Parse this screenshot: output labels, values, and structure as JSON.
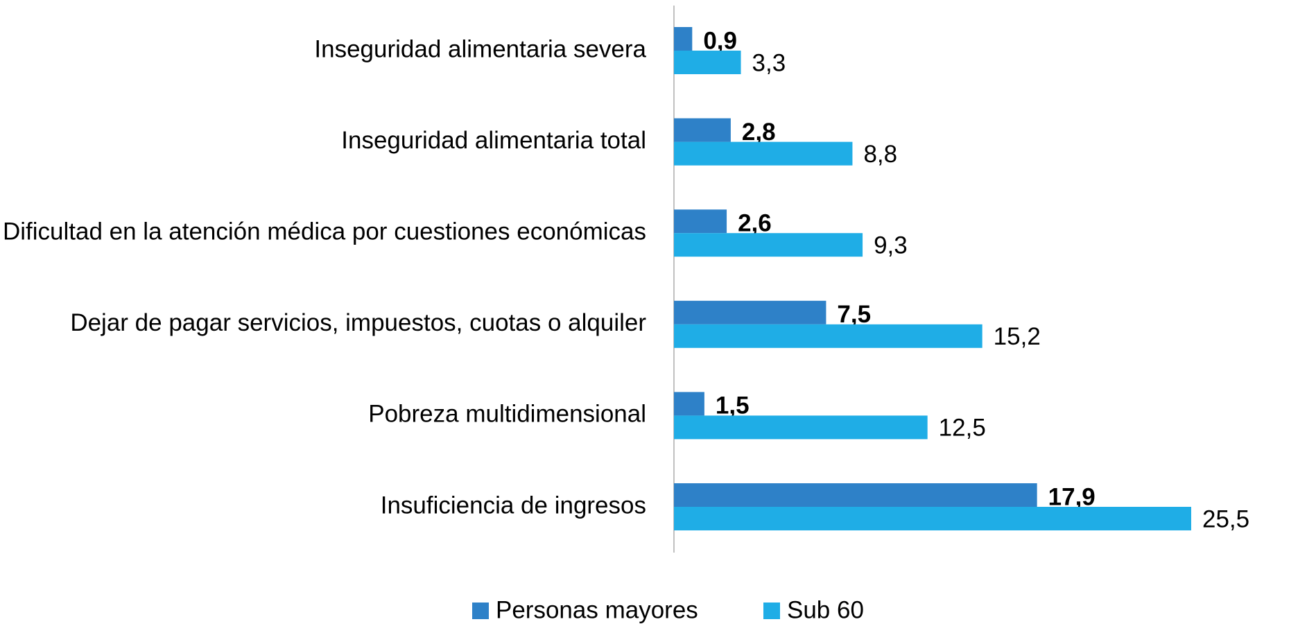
{
  "chart_data": {
    "type": "bar",
    "orientation": "horizontal",
    "categories": [
      "Inseguridad alimentaria severa",
      "Inseguridad alimentaria total",
      "Dificultad en la atención médica por cuestiones económicas",
      "Dejar de pagar servicios, impuestos, cuotas o alquiler",
      "Pobreza multidimensional",
      "Insuficiencia de ingresos"
    ],
    "series": [
      {
        "name": "Personas mayores",
        "color": "#2e81c8",
        "values": [
          0.9,
          2.8,
          2.6,
          7.5,
          1.5,
          17.9
        ],
        "value_labels": [
          "0,9",
          "2,8",
          "2,6",
          "7,5",
          "1,5",
          "17,9"
        ]
      },
      {
        "name": "Sub 60",
        "color": "#1fade6",
        "values": [
          3.3,
          8.8,
          9.3,
          15.2,
          12.5,
          25.5
        ],
        "value_labels": [
          "3,3",
          "8,8",
          "9,3",
          "15,2",
          "12,5",
          "25,5"
        ]
      }
    ],
    "xlim": [
      0,
      25.5
    ],
    "legend": "bottom"
  }
}
